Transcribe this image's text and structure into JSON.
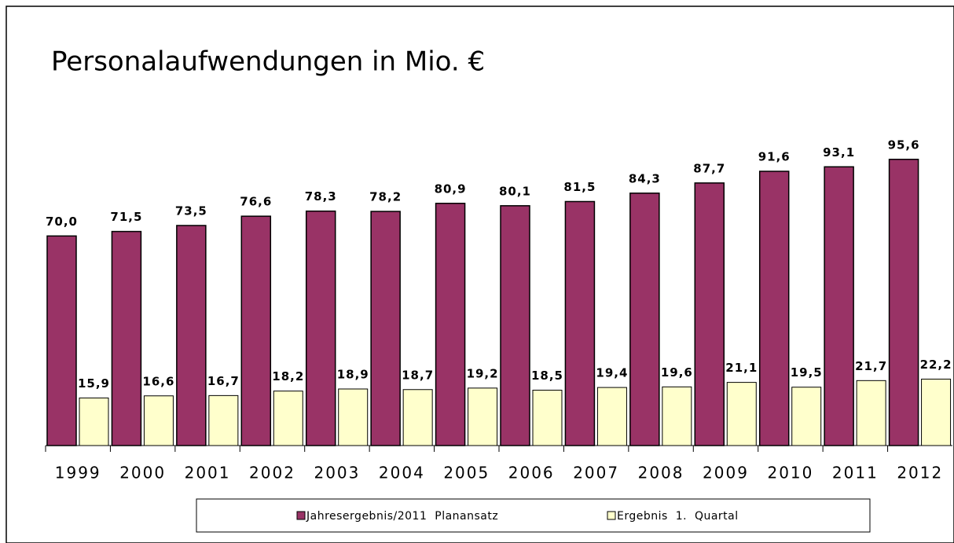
{
  "chart_data": {
    "type": "bar",
    "title": "Personalaufwendungen in Mio. €",
    "categories": [
      "1999",
      "2000",
      "2001",
      "2002",
      "2003",
      "2004",
      "2005",
      "2006",
      "2007",
      "2008",
      "2009",
      "2010",
      "2011",
      "2012"
    ],
    "series": [
      {
        "name": "Jahresergebnis/2011  Planansatz",
        "color": "#993366",
        "values": [
          70.0,
          71.5,
          73.5,
          76.6,
          78.3,
          78.2,
          80.9,
          80.1,
          81.5,
          84.3,
          87.7,
          91.6,
          93.1,
          95.6
        ],
        "value_labels": [
          "70,0",
          "71,5",
          "73,5",
          "76,6",
          "78,3",
          "78,2",
          "80,9",
          "80,1",
          "81,5",
          "84,3",
          "87,7",
          "91,6",
          "93,1",
          "95,6"
        ]
      },
      {
        "name": "Ergebnis  1.  Quartal",
        "color": "#ffffcc",
        "values": [
          15.9,
          16.6,
          16.7,
          18.2,
          18.9,
          18.7,
          19.2,
          18.5,
          19.4,
          19.6,
          21.1,
          19.5,
          21.7,
          22.2
        ],
        "value_labels": [
          "15,9",
          "16,6",
          "16,7",
          "18,2",
          "18,9",
          "18,7",
          "19,2",
          "18,5",
          "19,4",
          "19,6",
          "21,1",
          "19,5",
          "21,7",
          "22,2"
        ]
      }
    ],
    "legend": "bottom"
  }
}
